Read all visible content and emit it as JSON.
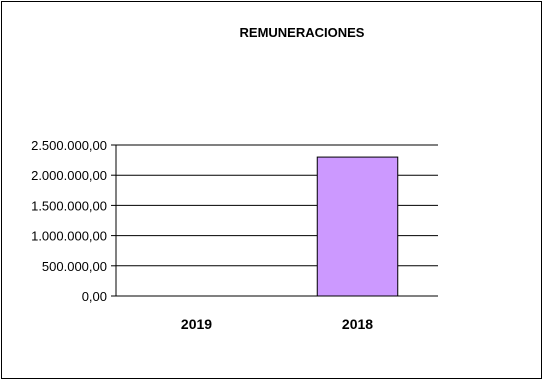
{
  "chart_data": {
    "type": "bar",
    "title": "REMUNERACIONES",
    "xlabel": "",
    "ylabel": "",
    "categories": [
      "2019",
      "2018"
    ],
    "series": [
      {
        "values": [
          0,
          2300000
        ]
      }
    ],
    "ylim": [
      0,
      2500000
    ],
    "yticks": [
      0,
      500000,
      1000000,
      1500000,
      2000000,
      2500000
    ],
    "ytick_labels": [
      "0,00",
      "500.000,00",
      "1.000.000,00",
      "1.500.000,00",
      "2.000.000,00",
      "2.500.000,00"
    ],
    "grid": true,
    "legend": "none",
    "bar_color": "#cc99ff",
    "bar_edge_color": "#000000"
  }
}
